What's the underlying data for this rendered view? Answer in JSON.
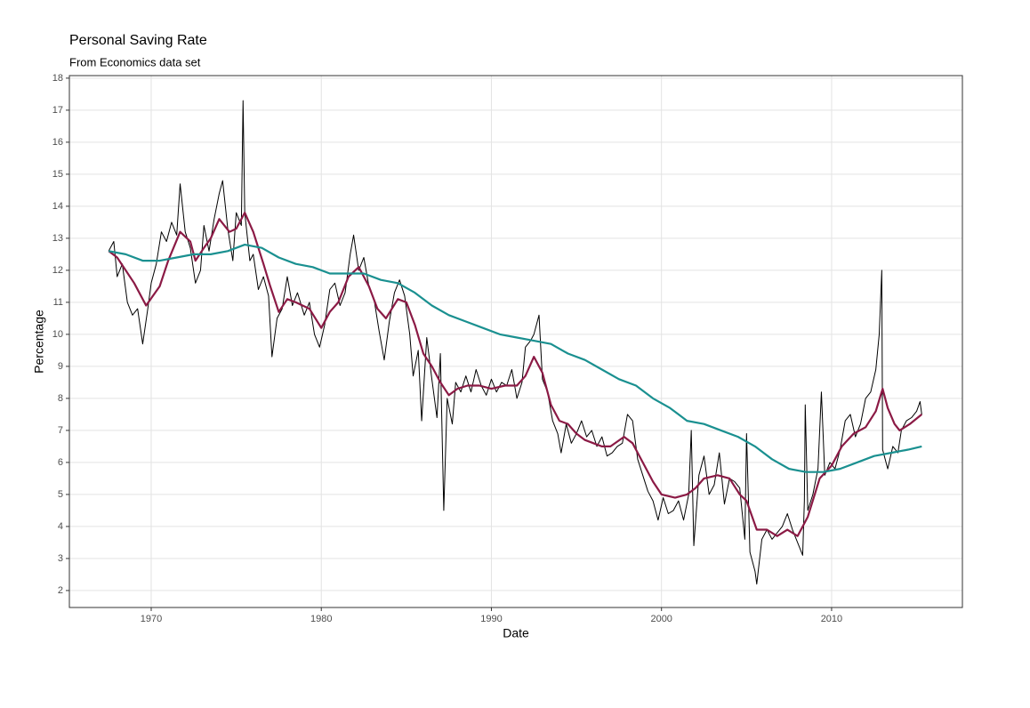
{
  "chart_data": {
    "type": "line",
    "title": "Personal Saving Rate",
    "subtitle": "From Economics data set",
    "x_label": "Date",
    "y_label": "Percentage",
    "xlim": [
      1965.19,
      2017.69
    ],
    "xticks": [
      1970,
      1980,
      1990,
      2000,
      2010
    ],
    "ylim": [
      1.47,
      18.08
    ],
    "yticks": [
      2,
      3,
      4,
      5,
      6,
      7,
      8,
      9,
      10,
      11,
      12,
      13,
      14,
      15,
      16,
      17,
      18
    ],
    "grid": true,
    "series": [
      {
        "color": "#000000",
        "x": [
          1967.5,
          1967.8,
          1968.0,
          1968.3,
          1968.6,
          1968.9,
          1969.2,
          1969.5,
          1969.8,
          1970.0,
          1970.3,
          1970.6,
          1970.9,
          1971.2,
          1971.5,
          1971.7,
          1972.0,
          1972.3,
          1972.6,
          1972.9,
          1973.1,
          1973.4,
          1973.7,
          1974.0,
          1974.2,
          1974.5,
          1974.8,
          1975.0,
          1975.3,
          1975.4,
          1975.5,
          1975.8,
          1976.0,
          1976.3,
          1976.6,
          1976.9,
          1977.1,
          1977.4,
          1977.7,
          1978.0,
          1978.3,
          1978.6,
          1979.0,
          1979.3,
          1979.6,
          1979.9,
          1980.2,
          1980.5,
          1980.8,
          1981.1,
          1981.4,
          1981.7,
          1981.9,
          1982.2,
          1982.5,
          1982.8,
          1983.1,
          1983.4,
          1983.7,
          1984.0,
          1984.3,
          1984.6,
          1984.9,
          1985.2,
          1985.4,
          1985.7,
          1985.9,
          1986.2,
          1986.5,
          1986.8,
          1987.0,
          1987.2,
          1987.4,
          1987.7,
          1987.9,
          1988.2,
          1988.5,
          1988.8,
          1989.1,
          1989.4,
          1989.7,
          1990.0,
          1990.3,
          1990.6,
          1990.9,
          1991.2,
          1991.5,
          1991.8,
          1992.0,
          1992.3,
          1992.5,
          1992.8,
          1993.0,
          1993.3,
          1993.6,
          1993.9,
          1994.1,
          1994.4,
          1994.7,
          1995.0,
          1995.3,
          1995.6,
          1995.9,
          1996.2,
          1996.5,
          1996.8,
          1997.1,
          1997.4,
          1997.7,
          1998.0,
          1998.3,
          1998.6,
          1998.9,
          1999.2,
          1999.5,
          1999.8,
          2000.1,
          2000.4,
          2000.7,
          2001.0,
          2001.3,
          2001.6,
          2001.75,
          2001.9,
          2002.2,
          2002.5,
          2002.8,
          2003.1,
          2003.4,
          2003.7,
          2004.0,
          2004.3,
          2004.6,
          2004.9,
          2005.0,
          2005.2,
          2005.5,
          2005.6,
          2005.9,
          2006.2,
          2006.5,
          2006.8,
          2007.1,
          2007.4,
          2007.7,
          2008.0,
          2008.3,
          2008.4,
          2008.45,
          2008.6,
          2008.9,
          2009.2,
          2009.4,
          2009.6,
          2009.9,
          2010.2,
          2010.5,
          2010.8,
          2011.1,
          2011.4,
          2011.7,
          2012.0,
          2012.3,
          2012.6,
          2012.8,
          2012.95,
          2013.0,
          2013.3,
          2013.6,
          2013.9,
          2014.1,
          2014.4,
          2014.7,
          2015.0,
          2015.2,
          2015.3
        ],
        "values": [
          12.6,
          12.9,
          11.8,
          12.2,
          11.0,
          10.6,
          10.8,
          9.7,
          10.8,
          11.6,
          12.2,
          13.2,
          12.9,
          13.5,
          13.1,
          14.7,
          13.2,
          12.7,
          11.6,
          12.0,
          13.4,
          12.6,
          13.6,
          14.4,
          14.8,
          13.3,
          12.3,
          13.8,
          13.4,
          17.3,
          13.8,
          12.3,
          12.5,
          11.4,
          11.8,
          11.2,
          9.3,
          10.5,
          10.8,
          11.8,
          10.9,
          11.3,
          10.6,
          11.0,
          10.0,
          9.6,
          10.3,
          11.4,
          11.6,
          10.9,
          11.3,
          12.5,
          13.1,
          12.0,
          12.4,
          11.5,
          11.1,
          10.1,
          9.2,
          10.4,
          11.3,
          11.7,
          11.2,
          10.0,
          8.7,
          9.5,
          7.3,
          9.9,
          8.6,
          7.4,
          9.4,
          4.5,
          8.0,
          7.2,
          8.5,
          8.2,
          8.7,
          8.2,
          8.9,
          8.4,
          8.1,
          8.6,
          8.2,
          8.5,
          8.4,
          8.9,
          8.0,
          8.5,
          9.6,
          9.8,
          10.0,
          10.6,
          8.6,
          8.2,
          7.3,
          6.9,
          6.3,
          7.2,
          6.6,
          6.9,
          7.3,
          6.8,
          7.0,
          6.5,
          6.8,
          6.2,
          6.3,
          6.5,
          6.6,
          7.5,
          7.3,
          6.1,
          5.6,
          5.1,
          4.8,
          4.2,
          4.9,
          4.4,
          4.5,
          4.8,
          4.2,
          5.0,
          7.0,
          3.4,
          5.6,
          6.2,
          5.0,
          5.3,
          6.3,
          4.7,
          5.5,
          5.4,
          5.2,
          3.6,
          6.9,
          3.2,
          2.6,
          2.2,
          3.6,
          3.9,
          3.6,
          3.8,
          4.0,
          4.4,
          3.9,
          3.5,
          3.1,
          4.8,
          7.8,
          4.5,
          5.0,
          5.8,
          8.2,
          5.6,
          6.0,
          5.8,
          6.4,
          7.3,
          7.5,
          6.8,
          7.2,
          8.0,
          8.2,
          8.9,
          10.0,
          12.0,
          6.4,
          5.8,
          6.5,
          6.3,
          7.0,
          7.3,
          7.4,
          7.6,
          7.9,
          7.5
        ]
      },
      {
        "color": "#8b1a45",
        "x": [
          1967.5,
          1968,
          1969,
          1969.7,
          1970.5,
          1971,
          1971.7,
          1972.3,
          1972.6,
          1973.1,
          1973.5,
          1974,
          1974.6,
          1975,
          1975.5,
          1976,
          1976.6,
          1977,
          1977.5,
          1978,
          1978.5,
          1979.3,
          1980,
          1980.5,
          1981,
          1981.6,
          1982.2,
          1982.8,
          1983.3,
          1983.8,
          1984.5,
          1985.0,
          1985.5,
          1986.0,
          1986.5,
          1987.0,
          1987.5,
          1988.0,
          1988.6,
          1989.3,
          1990,
          1990.8,
          1991.5,
          1992.0,
          1992.5,
          1993,
          1993.5,
          1994,
          1994.5,
          1995,
          1995.5,
          1996,
          1996.5,
          1997,
          1997.8,
          1998.3,
          1998.9,
          1999.5,
          2000.0,
          2000.8,
          2001.5,
          2002.0,
          2002.5,
          2003.3,
          2004,
          2004.6,
          2005.0,
          2005.6,
          2006.2,
          2006.8,
          2007.4,
          2008.0,
          2008.6,
          2009.3,
          2010.0,
          2010.6,
          2011.3,
          2012.0,
          2012.6,
          2013.0,
          2013.3,
          2013.7,
          2014.0,
          2014.6,
          2015.3
        ],
        "values": [
          12.6,
          12.4,
          11.6,
          10.9,
          11.5,
          12.3,
          13.2,
          12.9,
          12.3,
          12.7,
          13.0,
          13.6,
          13.2,
          13.3,
          13.8,
          13.2,
          12.2,
          11.5,
          10.7,
          11.1,
          11.0,
          10.8,
          10.2,
          10.7,
          11.0,
          11.8,
          12.1,
          11.5,
          10.8,
          10.5,
          11.1,
          11.0,
          10.3,
          9.4,
          9.0,
          8.5,
          8.1,
          8.3,
          8.4,
          8.4,
          8.3,
          8.4,
          8.4,
          8.7,
          9.3,
          8.8,
          7.8,
          7.3,
          7.2,
          6.9,
          6.7,
          6.6,
          6.5,
          6.5,
          6.8,
          6.6,
          6.0,
          5.4,
          5.0,
          4.9,
          5.0,
          5.2,
          5.5,
          5.6,
          5.5,
          5.0,
          4.8,
          3.9,
          3.9,
          3.7,
          3.9,
          3.7,
          4.3,
          5.5,
          5.9,
          6.5,
          6.9,
          7.1,
          7.6,
          8.3,
          7.7,
          7.2,
          7.0,
          7.2,
          7.5
        ]
      },
      {
        "color": "#1a9090",
        "x": [
          1967.5,
          1968.5,
          1969.5,
          1970.5,
          1971.5,
          1972.5,
          1973.5,
          1974.5,
          1975.5,
          1976.5,
          1977.5,
          1978.5,
          1979.5,
          1980.5,
          1981.5,
          1982.5,
          1983.5,
          1984.5,
          1985.5,
          1986.5,
          1987.5,
          1988.5,
          1989.5,
          1990.5,
          1991.5,
          1992.5,
          1993.5,
          1994.5,
          1995.5,
          1996.5,
          1997.5,
          1998.5,
          1999.5,
          2000.5,
          2001.5,
          2002.5,
          2003.5,
          2004.5,
          2005.5,
          2006.5,
          2007.5,
          2008.5,
          2009.5,
          2010.5,
          2011.5,
          2012.5,
          2013.5,
          2014.5,
          2015.3
        ],
        "values": [
          12.6,
          12.5,
          12.3,
          12.3,
          12.4,
          12.5,
          12.5,
          12.6,
          12.8,
          12.7,
          12.4,
          12.2,
          12.1,
          11.9,
          11.9,
          11.9,
          11.7,
          11.6,
          11.3,
          10.9,
          10.6,
          10.4,
          10.2,
          10.0,
          9.9,
          9.8,
          9.7,
          9.4,
          9.2,
          8.9,
          8.6,
          8.4,
          8.0,
          7.7,
          7.3,
          7.2,
          7.0,
          6.8,
          6.5,
          6.1,
          5.8,
          5.7,
          5.7,
          5.8,
          6.0,
          6.2,
          6.3,
          6.4,
          6.5
        ]
      }
    ]
  }
}
